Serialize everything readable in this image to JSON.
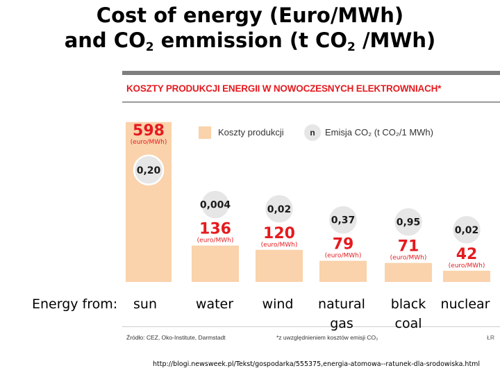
{
  "title": {
    "line1": "Cost of energy (Euro/MWh)",
    "line2_pre": "and CO",
    "line2_sub1": "2",
    "line2_mid": " emmission (t CO",
    "line2_sub2": "2",
    "line2_post": " /MWh)"
  },
  "infographic": {
    "heading": "KOSZTY PRODUKCJI ENERGII W NOWOCZESNYCH ELEKTROWNIACH*",
    "legend": {
      "cost_label": "Koszty produkcji",
      "co2_icon": "n",
      "co2_label": "Emisja CO₂ (t CO₂/1 MWh)"
    },
    "source": "Źródło: CEZ, Oko-Institute, Darmstadt",
    "footnote": "*z uwzględnieniem kosztów emisji CO₂",
    "author": "ŁR",
    "colors": {
      "bar": "#fad2ab",
      "accent": "#e41b1f",
      "bubble": "#e6e6e6"
    }
  },
  "chart_data": {
    "type": "bar",
    "title": "KOSZTY PRODUKCJI ENERGII W NOWOCZESNYCH ELEKTROWNIACH*",
    "categories": [
      "sun",
      "water",
      "wind",
      "natural gas",
      "black coal",
      "nuclear"
    ],
    "series": [
      {
        "name": "Koszty produkcji",
        "unit": "(euro/MWh)",
        "values": [
          598,
          136,
          120,
          79,
          71,
          42
        ]
      },
      {
        "name": "Emisja CO₂ (t CO₂/1 MWh)",
        "values": [
          "0,20",
          "0,004",
          "0,02",
          "0,37",
          "0,95",
          "0,02"
        ]
      }
    ]
  },
  "energy_labels": {
    "prefix": "Energy from:",
    "items": [
      {
        "lines": [
          "sun"
        ]
      },
      {
        "lines": [
          "water"
        ]
      },
      {
        "lines": [
          "wind"
        ]
      },
      {
        "lines": [
          "natural",
          "gas"
        ]
      },
      {
        "lines": [
          "black",
          "coal"
        ]
      },
      {
        "lines": [
          "nuclear"
        ]
      }
    ]
  },
  "footer_url": "http://blogi.newsweek.pl/Tekst/gospodarka/555375,energia-atomowa--ratunek-dla-srodowiska.html"
}
